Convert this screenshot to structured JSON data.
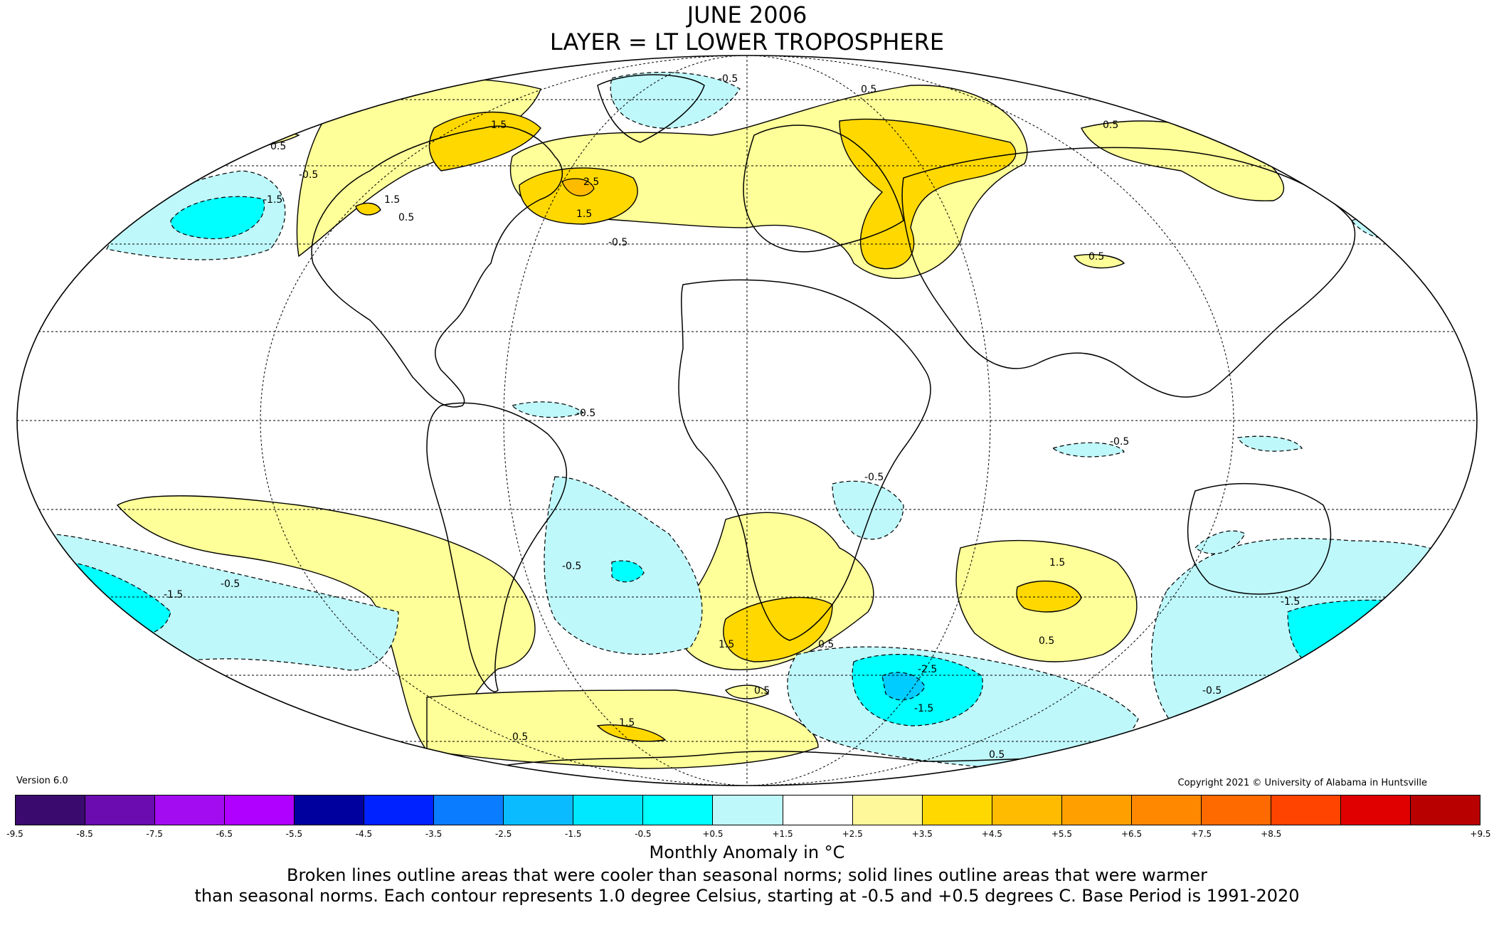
{
  "title": {
    "line1": "JUNE 2006",
    "line2": "LAYER = LT LOWER TROPOSPHERE"
  },
  "version": "Version 6.0",
  "copyright": "Copyright 2021 © University of Alabama in Huntsville",
  "colorbar": {
    "label": "Monthly Anomaly in °C",
    "ticks": [
      "-9.5",
      "-8.5",
      "-7.5",
      "-6.5",
      "-5.5",
      "-4.5",
      "-3.5",
      "-2.5",
      "-1.5",
      "-0.5",
      "+0.5",
      "+1.5",
      "+2.5",
      "+3.5",
      "+4.5",
      "+5.5",
      "+6.5",
      "+7.5",
      "+8.5",
      "+9.5"
    ],
    "colors": [
      "#3b0a6e",
      "#6a0cb0",
      "#a30cf0",
      "#b000ff",
      "#00009e",
      "#0022ff",
      "#0a7cff",
      "#0abcff",
      "#00e8ff",
      "#00ffff",
      "#bff8fb",
      "#ffffff",
      "#fff89a",
      "#ffd800",
      "#ffbb00",
      "#ffa000",
      "#ff8800",
      "#ff6a00",
      "#ff4400",
      "#e00000",
      "#b80000"
    ]
  },
  "description": {
    "line1": "Broken lines outline areas that were cooler than seasonal norms; solid lines outline areas that were warmer",
    "line2": "than seasonal norms. Each contour represents 1.0 degree Celsius, starting at -0.5 and +0.5 degrees C. Base Period is 1991-2020"
  },
  "map": {
    "projection": "Mollweide",
    "fill_colors": {
      "warm_1": "#ffff99",
      "warm_2": "#ffd800",
      "warm_3": "#ffbb00",
      "cool_1": "#bff8fb",
      "cool_2": "#00ffff",
      "cool_3": "#00ccff"
    },
    "contour_labels": [
      "0.5",
      "1.5",
      "2.5",
      "-0.5",
      "-1.5",
      "-2.5"
    ]
  }
}
